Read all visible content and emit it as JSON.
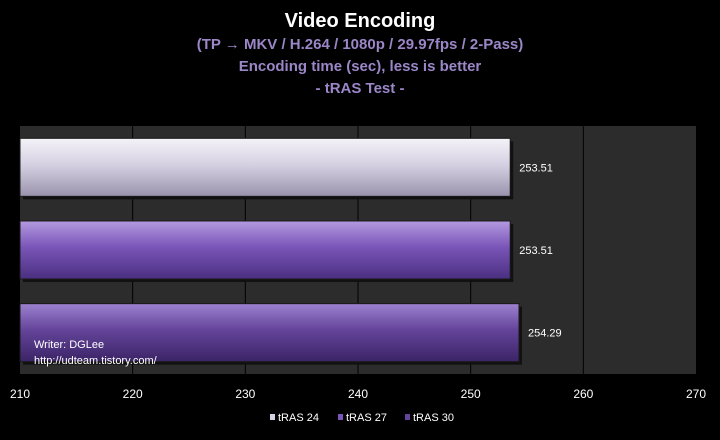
{
  "chart_data": {
    "type": "bar",
    "orientation": "horizontal",
    "title": "Video Encoding",
    "subtitles": [
      "(TP → MKV / H.264 / 1080p / 29.97fps / 2-Pass)",
      "Encoding time (sec), less is better",
      "- tRAS Test -"
    ],
    "series": [
      {
        "name": "tRAS 24",
        "value": 253.51,
        "label": "253.51",
        "color": "#d6d1e2"
      },
      {
        "name": "tRAS 27",
        "value": 253.51,
        "label": "253.51",
        "color": "#7a55b8"
      },
      {
        "name": "tRAS 30",
        "value": 254.29,
        "label": "254.29",
        "color": "#64449a"
      }
    ],
    "xlim": [
      210,
      270
    ],
    "xticks": [
      210,
      220,
      230,
      240,
      250,
      260,
      270
    ],
    "grid": true,
    "legend_position": "bottom",
    "annotation": [
      "Writer: DGLee",
      "http://udteam.tistory.com/"
    ]
  }
}
